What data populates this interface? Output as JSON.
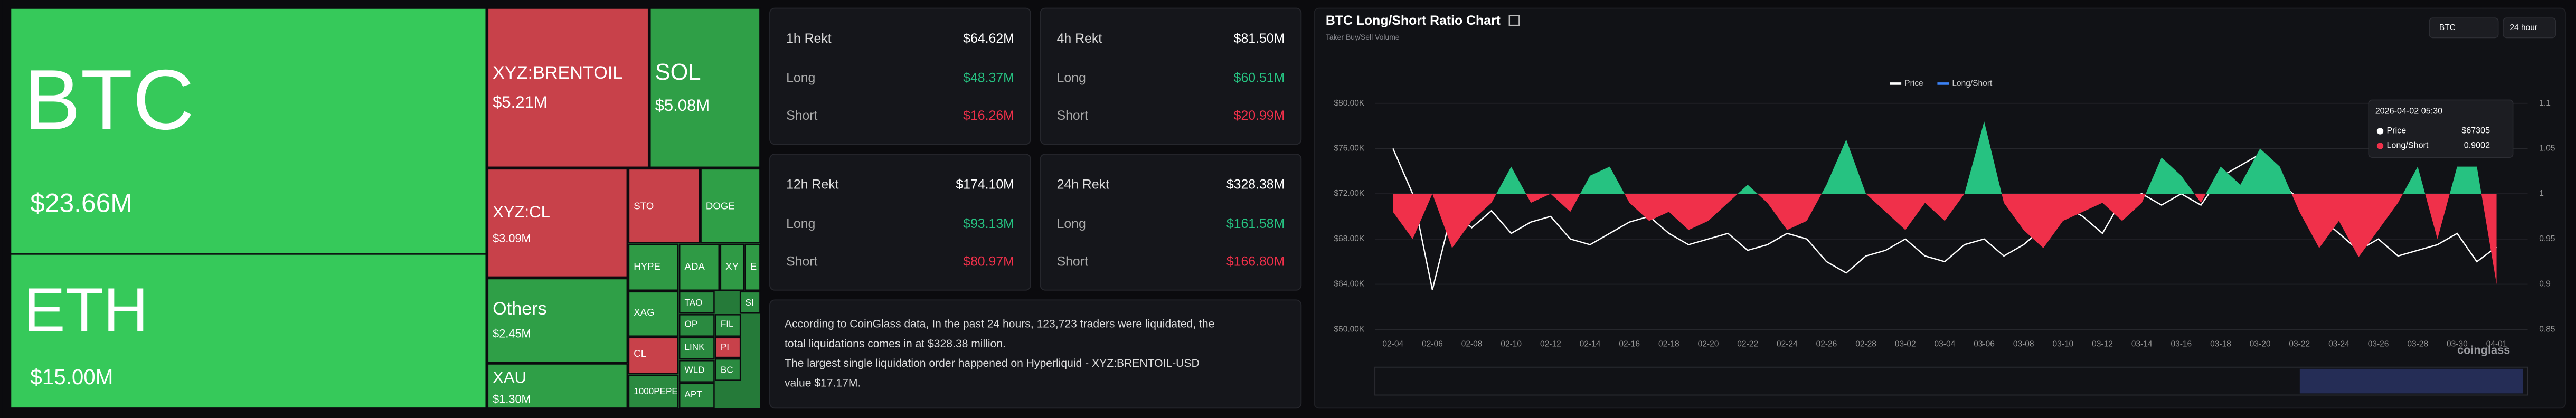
{
  "treemap": {
    "cells": [
      {
        "label": "BTC",
        "value": "$23.66M",
        "color": "#36c95a"
      },
      {
        "label": "ETH",
        "value": "$15.00M",
        "color": "#36c95a"
      },
      {
        "label": "XYZ:BRENTOIL",
        "value": "$5.21M",
        "color": "#c8414a"
      },
      {
        "label": "SOL",
        "value": "$5.08M",
        "color": "#2f9f47"
      },
      {
        "label": "XYZ:CL",
        "value": "$3.09M",
        "color": "#c8414a"
      },
      {
        "label": "STO",
        "color": "#c8414a"
      },
      {
        "label": "DOGE",
        "color": "#2f9f47"
      },
      {
        "label": "Others",
        "value": "$2.45M",
        "color": "#2f9f47"
      },
      {
        "label": "XAU",
        "value": "$1.30M",
        "color": "#2f9f47"
      },
      {
        "label": "HYPE",
        "color": "#2f9a45"
      },
      {
        "label": "ADA",
        "color": "#2f9a45"
      },
      {
        "label": "XY",
        "color": "#2f9a45"
      },
      {
        "label": "E",
        "color": "#2f9a45"
      },
      {
        "label": "XAG",
        "color": "#2f9a45"
      },
      {
        "label": "TAO",
        "color": "#2a8a40"
      },
      {
        "label": "SI",
        "color": "#2a8a40"
      },
      {
        "label": "OP",
        "color": "#2a8a40"
      },
      {
        "label": "FIL",
        "color": "#2a8a40"
      },
      {
        "label": "CL",
        "color": "#c8414a"
      },
      {
        "label": "LINK",
        "color": "#2a8a40"
      },
      {
        "label": "PI",
        "color": "#c8414a"
      },
      {
        "label": "WLD",
        "color": "#2a8a40"
      },
      {
        "label": "BC",
        "color": "#2a8a40"
      },
      {
        "label": "1000PEPE",
        "color": "#2a8a40"
      },
      {
        "label": "APT",
        "color": "#2a8a40"
      }
    ]
  },
  "cards": [
    {
      "title": "1h Rekt",
      "total": "$64.62M",
      "long_label": "Long",
      "long": "$48.37M",
      "short_label": "Short",
      "short": "$16.26M"
    },
    {
      "title": "4h Rekt",
      "total": "$81.50M",
      "long_label": "Long",
      "long": "$60.51M",
      "short_label": "Short",
      "short": "$20.99M"
    },
    {
      "title": "12h Rekt",
      "total": "$174.10M",
      "long_label": "Long",
      "long": "$93.13M",
      "short_label": "Short",
      "short": "$80.97M"
    },
    {
      "title": "24h Rekt",
      "total": "$328.38M",
      "long_label": "Long",
      "long": "$161.58M",
      "short_label": "Short",
      "short": "$166.80M"
    }
  ],
  "summary": [
    "According to CoinGlass data, In the past 24 hours, 123,723 traders were liquidated, the",
    "total liquidations comes in at $328.38 million.",
    "The largest single liquidation order happened on Hyperliquid - XYZ:BRENTOIL-USD",
    "value $17.17M."
  ],
  "chart_data": {
    "type": "line",
    "title": "BTC Long/Short Ratio Chart",
    "subtitle": "Taker Buy/Sell Volume",
    "selectors": [
      "BTC",
      "24 hour"
    ],
    "watermark": "coinglass",
    "categories": [
      "02-04",
      null,
      "02-06",
      null,
      "02-08",
      null,
      "02-10",
      null,
      "02-12",
      null,
      "02-14",
      null,
      "02-16",
      null,
      "02-18",
      null,
      "02-20",
      null,
      "02-22",
      null,
      "02-24",
      null,
      "02-26",
      null,
      "02-28",
      null,
      "03-02",
      null,
      "03-04",
      null,
      "03-06",
      null,
      "03-08",
      null,
      "03-10",
      null,
      "03-12",
      null,
      "03-14",
      null,
      "03-16",
      null,
      "03-18",
      null,
      "03-20",
      null,
      "03-22",
      null,
      "03-24",
      null,
      "03-26",
      null,
      "03-28",
      null,
      "03-30",
      null,
      "04-01"
    ],
    "series": [
      {
        "name": "Price",
        "color": "#ffffff",
        "axis": "y",
        "values": [
          76000,
          72000,
          63500,
          70500,
          69000,
          70500,
          68500,
          69500,
          70000,
          68000,
          67500,
          68500,
          69500,
          70000,
          68500,
          67500,
          68000,
          68500,
          67000,
          67500,
          68500,
          68000,
          66000,
          65000,
          66500,
          67000,
          68000,
          66500,
          66000,
          67500,
          68000,
          66500,
          67500,
          69000,
          71000,
          70000,
          68500,
          71500,
          72000,
          71000,
          72000,
          71000,
          73500,
          74500,
          75500,
          73000,
          71500,
          70000,
          68500,
          67000,
          68000,
          66500,
          67000,
          67500,
          68500,
          66000,
          67300
        ]
      },
      {
        "name": "Long/Short",
        "color": "#26c281",
        "negative_color": "#f0304a",
        "legend_color": "#3b82f6",
        "axis": "y2",
        "baseline": 1,
        "values": [
          0.98,
          0.95,
          1.0,
          0.94,
          0.97,
          0.99,
          1.03,
          0.99,
          1.0,
          0.98,
          1.02,
          1.03,
          0.99,
          0.97,
          0.98,
          0.96,
          0.97,
          0.99,
          1.01,
          0.99,
          0.96,
          0.97,
          1.01,
          1.06,
          1.0,
          0.98,
          0.96,
          0.99,
          0.97,
          1.0,
          1.08,
          0.99,
          0.96,
          0.94,
          0.97,
          0.98,
          0.99,
          0.97,
          0.99,
          1.04,
          1.02,
          0.99,
          1.03,
          1.01,
          1.05,
          1.03,
          0.98,
          0.94,
          0.97,
          0.93,
          0.96,
          0.99,
          1.03,
          0.95,
          1.03,
          1.03,
          0.9
        ]
      }
    ],
    "ylim": [
      60000,
      80000
    ],
    "yticks": [
      {
        "value": 60000,
        "label": "$60.00K"
      },
      {
        "value": 64000,
        "label": "$64.00K"
      },
      {
        "value": 68000,
        "label": "$68.00K"
      },
      {
        "value": 72000,
        "label": "$72.00K"
      },
      {
        "value": 76000,
        "label": "$76.00K"
      },
      {
        "value": 80000,
        "label": "$80.00K"
      }
    ],
    "y2lim": [
      0.85,
      1.1
    ],
    "y2ticks": [
      0.85,
      0.9,
      0.95,
      1,
      1.05,
      1.1
    ],
    "grid": true,
    "tooltip": {
      "date": "2026-04-02 05:30",
      "rows": [
        {
          "name": "Price",
          "value": "$67305"
        },
        {
          "name": "Long/Short",
          "value": "0.9002"
        }
      ]
    }
  }
}
